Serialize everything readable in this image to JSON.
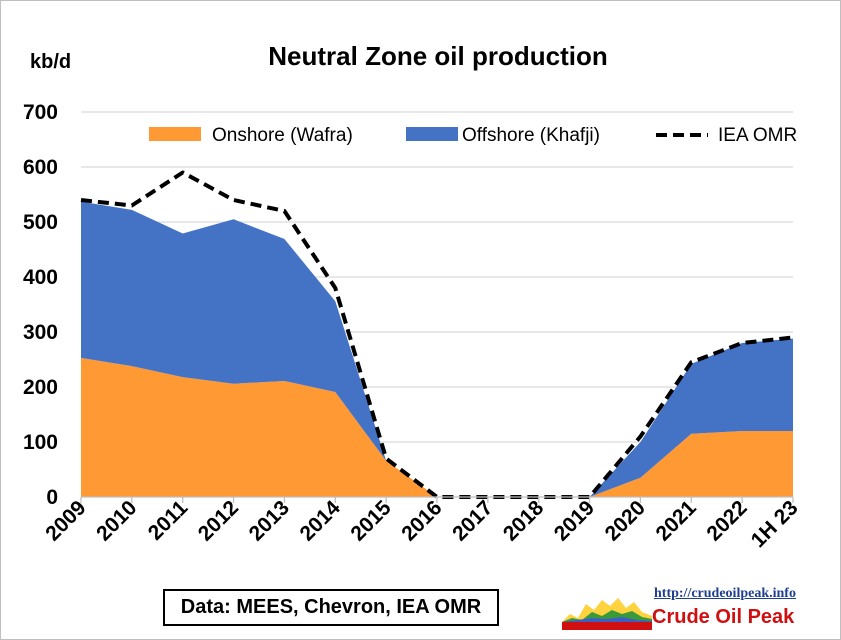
{
  "chart_data": {
    "type": "area",
    "title": "Neutral Zone oil production",
    "ylabel": "kb/d",
    "xlabel": "",
    "categories": [
      "2009",
      "2010",
      "2011",
      "2012",
      "2013",
      "2014",
      "2015",
      "2016",
      "2017",
      "2018",
      "2019",
      "2020",
      "2021",
      "2022",
      "1H 23"
    ],
    "ylim": [
      0,
      700
    ],
    "yticks": [
      0,
      100,
      200,
      300,
      400,
      500,
      600,
      700
    ],
    "grid": true,
    "legend_position": "top",
    "stacked": true,
    "series": [
      {
        "name": "Onshore (Wafra)",
        "type": "area",
        "color": "#ff9933",
        "values": [
          253,
          238,
          218,
          206,
          211,
          191,
          66,
          0,
          0,
          0,
          0,
          35,
          115,
          120,
          120
        ]
      },
      {
        "name": "Offshore (Khafji)",
        "type": "area",
        "color": "#4472c4",
        "values": [
          284,
          284,
          261,
          299,
          258,
          165,
          0,
          0,
          0,
          0,
          0,
          65,
          127,
          160,
          168
        ]
      },
      {
        "name": "IEA OMR",
        "type": "line",
        "style": "dashed",
        "color": "#000000",
        "values": [
          540,
          530,
          590,
          540,
          520,
          380,
          70,
          0,
          0,
          0,
          0,
          110,
          245,
          280,
          290
        ]
      }
    ]
  },
  "footer": {
    "source_text": "Data: MEES, Chevron, IEA OMR",
    "logo_url": "http://crudeoilpeak.info",
    "logo_name": "Crude Oil Peak"
  }
}
